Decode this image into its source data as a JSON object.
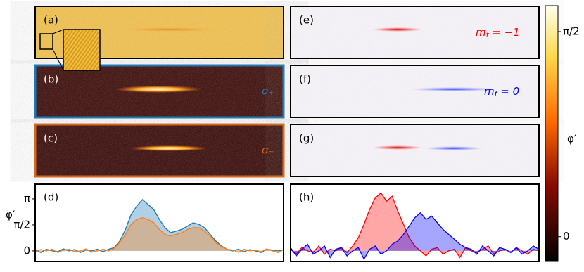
{
  "image_panels": [
    {
      "label": "(a)",
      "border_color": "#000000"
    },
    {
      "label": "(b)",
      "annotation": "σ₊",
      "border_color": "#1f77b4",
      "annotation_color": "#1f77b4"
    },
    {
      "label": "(c)",
      "annotation": "σ₋",
      "border_color": "#d2691e",
      "annotation_color": "#d2691e"
    },
    {
      "label": "(e)",
      "annotation": {
        "main": "m",
        "sub": "f",
        "rest": " = −1"
      },
      "border_color": "#000000",
      "annotation_color": "#ff0000"
    },
    {
      "label": "(f)",
      "annotation": {
        "main": "m",
        "sub": "f",
        "rest": " = 0"
      },
      "border_color": "#000000",
      "annotation_color": "#0000ff"
    },
    {
      "label": "(g)",
      "border_color": "#000000"
    }
  ],
  "colorbar": {
    "label": "φ′",
    "lim": [
      -0.19,
      1.77
    ],
    "ticks": [
      0,
      {
        "value": 1.5708,
        "label": "π/2"
      }
    ]
  },
  "chart_data": [
    {
      "type": "line",
      "label": "(d)",
      "ylabel": "φ′",
      "ylim": [
        -0.64,
        4.03
      ],
      "yticks": [
        0,
        {
          "value": 1.5708,
          "label": "π/2"
        },
        {
          "value": 3.1416,
          "label": "π"
        }
      ],
      "series": [
        {
          "color": "#1f77b4",
          "values": [
            0.05,
            -0.1,
            0.1,
            0.0,
            -0.05,
            0.12,
            0.0,
            0.08,
            -0.1,
            0.05,
            0.0,
            0.1,
            -0.05,
            0.1,
            0.2,
            0.6,
            1.3,
            2.2,
            2.7,
            3.1,
            2.8,
            2.5,
            1.9,
            1.4,
            1.1,
            1.2,
            1.3,
            1.5,
            1.7,
            1.6,
            1.4,
            1.0,
            0.6,
            0.3,
            0.1,
            0.0,
            0.1,
            -0.05,
            0.08,
            0.0,
            -0.1,
            0.1,
            0.05,
            0.0,
            0.05
          ]
        },
        {
          "color": "#ff7f0e",
          "values": [
            -0.05,
            0.08,
            0.0,
            0.1,
            -0.1,
            0.05,
            0.1,
            -0.05,
            0.0,
            0.12,
            -0.08,
            0.0,
            0.1,
            0.0,
            0.15,
            0.5,
            1.0,
            1.6,
            1.9,
            2.0,
            1.9,
            1.7,
            1.3,
            1.0,
            0.9,
            1.0,
            1.1,
            1.3,
            1.4,
            1.4,
            1.2,
            0.9,
            0.5,
            0.25,
            0.1,
            0.05,
            -0.08,
            0.1,
            0.0,
            0.05,
            -0.05,
            0.12,
            0.0,
            -0.1,
            0.08
          ]
        }
      ]
    },
    {
      "type": "line",
      "label": "(h)",
      "ylim": [
        -0.64,
        4.03
      ],
      "series": [
        {
          "color": "#ff0000",
          "values": [
            0.1,
            -0.2,
            0.2,
            0.0,
            -0.1,
            0.3,
            -0.2,
            0.1,
            0.0,
            0.2,
            -0.1,
            0.3,
            0.8,
            1.6,
            2.5,
            3.2,
            3.5,
            3.0,
            3.3,
            2.4,
            1.6,
            0.8,
            0.3,
            0.0,
            -0.3,
            0.1,
            0.2,
            -0.2,
            0.0,
            0.1,
            -0.4,
            0.2,
            0.0,
            -0.1,
            0.1,
            0.3,
            -0.2,
            0.0,
            0.1,
            -0.1,
            0.2,
            0.0,
            -0.2,
            0.1,
            0.0
          ]
        },
        {
          "color": "#0000ff",
          "values": [
            0.2,
            -0.3,
            0.1,
            0.4,
            -0.2,
            0.0,
            0.3,
            -0.4,
            0.1,
            0.2,
            -0.3,
            0.0,
            0.2,
            -0.5,
            0.1,
            0.3,
            -0.2,
            0.0,
            0.4,
            0.6,
            1.0,
            1.5,
            2.0,
            2.3,
            1.9,
            2.1,
            1.7,
            1.3,
            1.0,
            0.7,
            0.4,
            0.2,
            0.1,
            -0.2,
            0.3,
            0.0,
            -0.3,
            0.2,
            0.1,
            -0.1,
            0.2,
            -0.2,
            0.0,
            0.3,
            0.1
          ]
        }
      ]
    }
  ]
}
